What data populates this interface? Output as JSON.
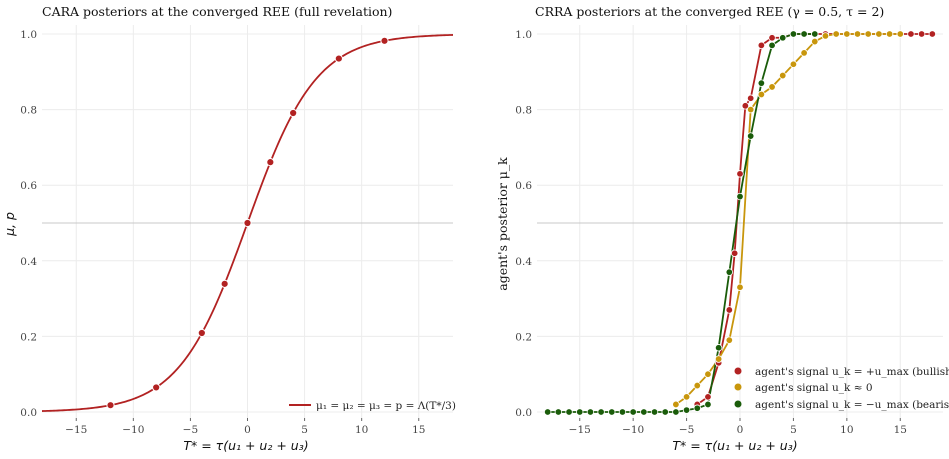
{
  "chart_data": [
    {
      "type": "line",
      "title": "CARA posteriors at the converged REE  (full revelation)",
      "xlabel": "T* = τ(u₁ + u₂ + u₃)",
      "ylabel": "μ, p",
      "xlim": [
        -18,
        18
      ],
      "ylim": [
        0,
        1
      ],
      "x_ticks": [
        "−15",
        "−10",
        "−5",
        "0",
        "5",
        "10",
        "15"
      ],
      "y_ticks": [
        "0.0",
        "0.2",
        "0.4",
        "0.6",
        "0.8",
        "1.0"
      ],
      "hline": 0.5,
      "grid": true,
      "legend_position": "lower-right",
      "series": [
        {
          "name": "μ₁ = μ₂ = μ₃ = p = Λ(T*/3)",
          "color": "#b22222",
          "function": "logistic(x/3)",
          "markers_x": [
            -12,
            -8,
            -4,
            -2,
            0,
            2,
            4,
            8,
            12
          ],
          "markers_y": [
            0.018,
            0.065,
            0.209,
            0.339,
            0.5,
            0.661,
            0.791,
            0.935,
            0.982
          ]
        }
      ]
    },
    {
      "type": "line",
      "title": "CRRA posteriors at the converged REE  (γ = 0.5, τ = 2)",
      "xlabel": "T* = τ(u₁ + u₂ + u₃)",
      "ylabel": "agent's posterior μ_k",
      "xlim": [
        -19,
        19
      ],
      "ylim": [
        0,
        1
      ],
      "x_ticks": [
        "−15",
        "−10",
        "−5",
        "0",
        "5",
        "10",
        "15"
      ],
      "y_ticks": [
        "0.0",
        "0.2",
        "0.4",
        "0.6",
        "0.8",
        "1.0"
      ],
      "hline": 0.5,
      "grid": true,
      "legend_position": "lower-right",
      "series": [
        {
          "name": "agent's signal u_k = +u_max (bullish)",
          "color": "#b22222",
          "x": [
            -4,
            -3,
            -2,
            -1,
            -0.5,
            0,
            0.5,
            1,
            2,
            3,
            4,
            5,
            6,
            7,
            8,
            9,
            10,
            11,
            12,
            13,
            14,
            15,
            16,
            17,
            18
          ],
          "y": [
            0.02,
            0.04,
            0.13,
            0.27,
            0.42,
            0.63,
            0.81,
            0.83,
            0.97,
            0.99,
            0.99,
            1.0,
            1.0,
            1.0,
            1.0,
            1.0,
            1.0,
            1.0,
            1.0,
            1.0,
            1.0,
            1.0,
            1.0,
            1.0,
            1.0
          ]
        },
        {
          "name": "agent's signal u_k ≈ 0",
          "color": "#c8960c",
          "x": [
            -6,
            -5,
            -4,
            -3,
            -2,
            -1,
            0,
            1,
            2,
            3,
            4,
            5,
            6,
            7,
            8,
            9,
            10,
            11,
            12,
            13,
            14,
            15
          ],
          "y": [
            0.02,
            0.04,
            0.07,
            0.1,
            0.14,
            0.19,
            0.33,
            0.8,
            0.84,
            0.86,
            0.89,
            0.92,
            0.95,
            0.98,
            0.995,
            1.0,
            1.0,
            1.0,
            1.0,
            1.0,
            1.0,
            1.0
          ]
        },
        {
          "name": "agent's signal u_k = −u_max (bearish)",
          "color": "#1a5c0a",
          "x": [
            -18,
            -17,
            -16,
            -15,
            -14,
            -13,
            -12,
            -11,
            -10,
            -9,
            -8,
            -7,
            -6,
            -5,
            -4,
            -3,
            -2,
            -1,
            0,
            1,
            2,
            3,
            4,
            5,
            6,
            7
          ],
          "y": [
            0.0,
            0.0,
            0.0,
            0.0,
            0.0,
            0.0,
            0.0,
            0.0,
            0.0,
            0.0,
            0.0,
            0.0,
            0.0,
            0.005,
            0.01,
            0.02,
            0.17,
            0.37,
            0.57,
            0.73,
            0.87,
            0.97,
            0.99,
            1.0,
            1.0,
            1.0
          ]
        }
      ]
    }
  ]
}
